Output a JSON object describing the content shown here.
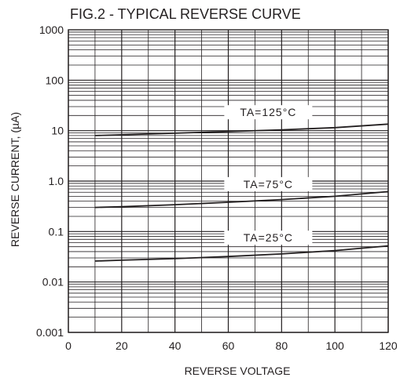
{
  "chart_data": {
    "type": "line",
    "title": "FIG.2 - TYPICAL REVERSE CURVE",
    "xlabel": "REVERSE VOLTAGE",
    "ylabel": "REVERSE CURRENT, (µA)",
    "x_scale": "linear",
    "y_scale": "log",
    "xlim": [
      0,
      120
    ],
    "ylim": [
      0.001,
      1000
    ],
    "x_ticks": [
      "0",
      "20",
      "40",
      "60",
      "80",
      "100",
      "120"
    ],
    "x_tick_values": [
      0,
      20,
      40,
      60,
      80,
      100,
      120
    ],
    "y_ticks": [
      "0.001",
      "0.01",
      "0.1",
      "1.0",
      "10",
      "100",
      "1000"
    ],
    "y_tick_values": [
      0.001,
      0.01,
      0.1,
      1,
      10,
      100,
      1000
    ],
    "grid": true,
    "series": [
      {
        "name": "TA=125°C",
        "x": [
          10,
          20,
          40,
          60,
          80,
          100,
          120
        ],
        "y": [
          8.0,
          8.3,
          8.9,
          9.6,
          10.4,
          11.5,
          13.5
        ]
      },
      {
        "name": "TA=75°C",
        "x": [
          10,
          20,
          40,
          60,
          80,
          100,
          120
        ],
        "y": [
          0.3,
          0.31,
          0.34,
          0.38,
          0.43,
          0.5,
          0.62
        ]
      },
      {
        "name": "TA=25°C",
        "x": [
          10,
          20,
          40,
          60,
          80,
          100,
          120
        ],
        "y": [
          0.026,
          0.027,
          0.029,
          0.032,
          0.036,
          0.042,
          0.052
        ]
      }
    ]
  },
  "colors": {
    "ink": "#231f20",
    "background": "#ffffff"
  }
}
